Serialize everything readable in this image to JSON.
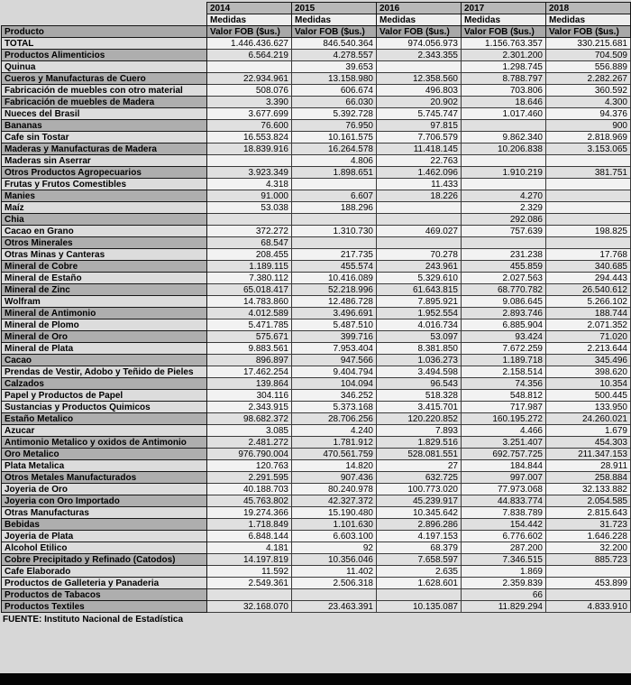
{
  "colors": {
    "page_background": "#d7d7d7",
    "year_header_bg": "#b8b8b8",
    "medidas_header_bg": "#eeeeee",
    "column_header_bg": "#a8a8a8",
    "product_row_light": "#dcdcdc",
    "product_row_dark": "#aeaeae",
    "value_row_light": "#f2f2f2",
    "value_row_dark": "#e0e0e0",
    "bottom_bar": "#050505"
  },
  "table": {
    "product_header": "Producto",
    "measure_label": "Medidas",
    "value_label": "Valor FOB ($us.)",
    "years": [
      "2014",
      "2015",
      "2016",
      "2017",
      "2018"
    ],
    "source": "FUENTE: Instituto Nacional de Estadística",
    "rows": [
      {
        "name": "TOTAL",
        "shade": "light",
        "values": [
          "1.446.436.627",
          "846.540.364",
          "974.056.973",
          "1.156.763.357",
          "330.215.681"
        ]
      },
      {
        "name": "Productos Alimenticios",
        "shade": "dark",
        "values": [
          "6.564.219",
          "4.278.557",
          "2.343.355",
          "2.301.200",
          "704.509"
        ]
      },
      {
        "name": "Quinua",
        "shade": "light",
        "values": [
          "",
          "39.653",
          "",
          "1.298.745",
          "556.889"
        ]
      },
      {
        "name": "Cueros y Manufacturas de Cuero",
        "shade": "dark",
        "values": [
          "22.934.961",
          "13.158.980",
          "12.358.560",
          "8.788.797",
          "2.282.267"
        ]
      },
      {
        "name": "Fabricación de muebles con otro material",
        "shade": "light",
        "values": [
          "508.076",
          "606.674",
          "496.803",
          "703.806",
          "360.592"
        ]
      },
      {
        "name": "Fabricación de muebles de Madera",
        "shade": "dark",
        "values": [
          "3.390",
          "66.030",
          "20.902",
          "18.646",
          "4.300"
        ]
      },
      {
        "name": "Nueces del Brasil",
        "shade": "light",
        "values": [
          "3.677.699",
          "5.392.728",
          "5.745.747",
          "1.017.460",
          "94.376"
        ]
      },
      {
        "name": "Bananas",
        "shade": "dark",
        "values": [
          "76.600",
          "76.950",
          "97.815",
          "",
          "900"
        ]
      },
      {
        "name": "Cafe sin Tostar",
        "shade": "light",
        "values": [
          "16.553.824",
          "10.161.575",
          "7.706.579",
          "9.862.340",
          "2.818.969"
        ]
      },
      {
        "name": "Maderas y Manufacturas de Madera",
        "shade": "dark",
        "values": [
          "18.839.916",
          "16.264.578",
          "11.418.145",
          "10.206.838",
          "3.153.065"
        ]
      },
      {
        "name": "Maderas sin Aserrar",
        "shade": "light",
        "values": [
          "",
          "4.806",
          "22.763",
          "",
          ""
        ]
      },
      {
        "name": "Otros Productos Agropecuarios",
        "shade": "dark",
        "values": [
          "3.923.349",
          "1.898.651",
          "1.462.096",
          "1.910.219",
          "381.751"
        ]
      },
      {
        "name": "Frutas y Frutos Comestibles",
        "shade": "light",
        "values": [
          "4.318",
          "",
          "11.433",
          "",
          ""
        ]
      },
      {
        "name": "Manies",
        "shade": "dark",
        "values": [
          "91.000",
          "6.607",
          "18.226",
          "4.270",
          ""
        ]
      },
      {
        "name": "Maíz",
        "shade": "light",
        "values": [
          "53.038",
          "188.296",
          "",
          "2.329",
          ""
        ]
      },
      {
        "name": "Chia",
        "shade": "dark",
        "values": [
          "",
          "",
          "",
          "292.086",
          ""
        ]
      },
      {
        "name": "Cacao en Grano",
        "shade": "light",
        "values": [
          "372.272",
          "1.310.730",
          "469.027",
          "757.639",
          "198.825"
        ]
      },
      {
        "name": "Otros Minerales",
        "shade": "dark",
        "values": [
          "68.547",
          "",
          "",
          "",
          ""
        ]
      },
      {
        "name": "Otras Minas y Canteras",
        "shade": "light",
        "values": [
          "208.455",
          "217.735",
          "70.278",
          "231.238",
          "17.768"
        ]
      },
      {
        "name": "Mineral de Cobre",
        "shade": "dark",
        "values": [
          "1.189.115",
          "455.574",
          "243.961",
          "455.859",
          "340.685"
        ]
      },
      {
        "name": "Mineral de Estaño",
        "shade": "light",
        "values": [
          "7.380.112",
          "10.416.089",
          "5.329.610",
          "2.027.563",
          "294.443"
        ]
      },
      {
        "name": "Mineral de Zinc",
        "shade": "dark",
        "values": [
          "65.018.417",
          "52.218.996",
          "61.643.815",
          "68.770.782",
          "26.540.612"
        ]
      },
      {
        "name": "Wolfram",
        "shade": "light",
        "values": [
          "14.783.860",
          "12.486.728",
          "7.895.921",
          "9.086.645",
          "5.266.102"
        ]
      },
      {
        "name": "Mineral de Antimonio",
        "shade": "dark",
        "values": [
          "4.012.589",
          "3.496.691",
          "1.952.554",
          "2.893.746",
          "188.744"
        ]
      },
      {
        "name": "Mineral de Plomo",
        "shade": "light",
        "values": [
          "5.471.785",
          "5.487.510",
          "4.016.734",
          "6.885.904",
          "2.071.352"
        ]
      },
      {
        "name": "Mineral de Oro",
        "shade": "dark",
        "values": [
          "575.671",
          "399.716",
          "53.097",
          "93.424",
          "71.020"
        ]
      },
      {
        "name": "Mineral de Plata",
        "shade": "light",
        "values": [
          "9.883.561",
          "7.953.404",
          "8.381.850",
          "7.672.259",
          "2.213.644"
        ]
      },
      {
        "name": "Cacao",
        "shade": "dark",
        "values": [
          "896.897",
          "947.566",
          "1.036.273",
          "1.189.718",
          "345.496"
        ]
      },
      {
        "name": "Prendas de Vestir, Adobo y Teñido de Pieles",
        "shade": "light",
        "values": [
          "17.462.254",
          "9.404.794",
          "3.494.598",
          "2.158.514",
          "398.620"
        ]
      },
      {
        "name": "Calzados",
        "shade": "dark",
        "values": [
          "139.864",
          "104.094",
          "96.543",
          "74.356",
          "10.354"
        ]
      },
      {
        "name": "Papel y Productos de Papel",
        "shade": "light",
        "values": [
          "304.116",
          "346.252",
          "518.328",
          "548.812",
          "500.445"
        ]
      },
      {
        "name": "Sustancias y Productos Quimicos",
        "shade": "light",
        "values": [
          "2.343.915",
          "5.373.168",
          "3.415.701",
          "717.987",
          "133.950"
        ]
      },
      {
        "name": "Estaño Metalico",
        "shade": "dark",
        "values": [
          "98.682.372",
          "28.706.256",
          "120.220.852",
          "160.195.272",
          "24.260.021"
        ]
      },
      {
        "name": "Azucar",
        "shade": "light",
        "values": [
          "3.085",
          "4.240",
          "7.893",
          "4.466",
          "1.679"
        ]
      },
      {
        "name": "Antimonio Metalico y oxidos de Antimonio",
        "shade": "dark",
        "values": [
          "2.481.272",
          "1.781.912",
          "1.829.516",
          "3.251.407",
          "454.303"
        ]
      },
      {
        "name": "Oro Metalico",
        "shade": "dark",
        "values": [
          "976.790.004",
          "470.561.759",
          "528.081.551",
          "692.757.725",
          "211.347.153"
        ]
      },
      {
        "name": "Plata Metalica",
        "shade": "light",
        "values": [
          "120.763",
          "14.820",
          "27",
          "184.844",
          "28.911"
        ]
      },
      {
        "name": "Otros Metales Manufacturados",
        "shade": "dark",
        "values": [
          "2.291.595",
          "907.436",
          "632.725",
          "997.007",
          "258.884"
        ]
      },
      {
        "name": "Joyeria de Oro",
        "shade": "light",
        "values": [
          "40.188.703",
          "80.240.978",
          "100.773.020",
          "77.973.068",
          "32.133.882"
        ]
      },
      {
        "name": "Joyeria con Oro Importado",
        "shade": "dark",
        "values": [
          "45.763.802",
          "42.327.372",
          "45.239.917",
          "44.833.774",
          "2.054.585"
        ]
      },
      {
        "name": "Otras Manufacturas",
        "shade": "light",
        "values": [
          "19.274.366",
          "15.190.480",
          "10.345.642",
          "7.838.789",
          "2.815.643"
        ]
      },
      {
        "name": "Bebidas",
        "shade": "dark",
        "values": [
          "1.718.849",
          "1.101.630",
          "2.896.286",
          "154.442",
          "31.723"
        ]
      },
      {
        "name": "Joyeria de Plata",
        "shade": "light",
        "values": [
          "6.848.144",
          "6.603.100",
          "4.197.153",
          "6.776.602",
          "1.646.228"
        ]
      },
      {
        "name": "Alcohol Etilico",
        "shade": "light",
        "values": [
          "4.181",
          "92",
          "68.379",
          "287.200",
          "32.200"
        ]
      },
      {
        "name": "Cobre Precipitado y Refinado (Catodos)",
        "shade": "dark",
        "values": [
          "14.197.819",
          "10.356.046",
          "7.658.597",
          "7.346.515",
          "885.723"
        ]
      },
      {
        "name": "Cafe Elaborado",
        "shade": "light",
        "values": [
          "11.592",
          "11.402",
          "2.635",
          "1.869",
          ""
        ]
      },
      {
        "name": "Productos de Galleteria  y Panaderia",
        "shade": "light",
        "values": [
          "2.549.361",
          "2.506.318",
          "1.628.601",
          "2.359.839",
          "453.899"
        ]
      },
      {
        "name": "Productos de Tabacos",
        "shade": "dark",
        "values": [
          "",
          "",
          "",
          "66",
          ""
        ]
      },
      {
        "name": "Productos Textiles",
        "shade": "dark",
        "values": [
          "32.168.070",
          "23.463.391",
          "10.135.087",
          "11.829.294",
          "4.833.910"
        ]
      }
    ]
  }
}
